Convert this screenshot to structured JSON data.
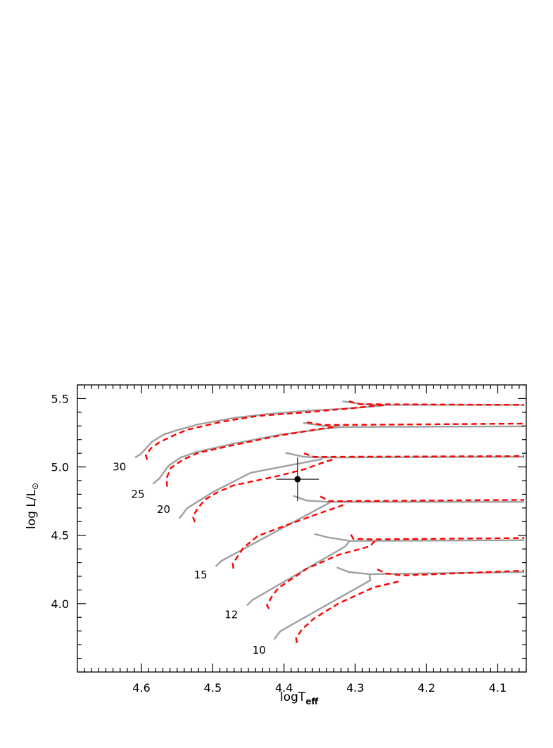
{
  "chart_data": {
    "type": "line",
    "xlabel": "logT",
    "xlabel_subscript": "eff",
    "ylabel": "log  L/L",
    "ylabel_subscript": "⊙",
    "xlim": [
      4.69,
      4.06
    ],
    "ylim": [
      3.5,
      5.6
    ],
    "x_reversed": true,
    "grid": false,
    "x_ticks": [
      "4.6",
      "4.5",
      "4.4",
      "4.3",
      "4.2",
      "4.1"
    ],
    "y_ticks": [
      "4.0",
      "4.5",
      "5.0",
      "5.5"
    ],
    "colors": {
      "solid": "#a0a0a0",
      "dashed": "#ff0000",
      "point": "#000000"
    },
    "series": [
      {
        "mass": "30",
        "style": "solid",
        "points": [
          [
            4.609,
            5.069
          ],
          [
            4.601,
            5.094
          ],
          [
            4.585,
            5.185
          ],
          [
            4.569,
            5.236
          ],
          [
            4.552,
            5.266
          ],
          [
            4.52,
            5.312
          ],
          [
            4.471,
            5.358
          ],
          [
            4.421,
            5.388
          ],
          [
            4.372,
            5.409
          ],
          [
            4.306,
            5.429
          ],
          [
            4.26,
            5.449
          ]
        ]
      },
      {
        "mass": "30",
        "style": "solid",
        "points": [
          [
            4.318,
            5.48
          ],
          [
            4.289,
            5.459
          ],
          [
            4.264,
            5.454
          ],
          [
            4.063,
            5.454
          ]
        ]
      },
      {
        "mass": "30",
        "style": "dashed",
        "points": [
          [
            4.592,
            5.053
          ],
          [
            4.594,
            5.084
          ],
          [
            4.587,
            5.135
          ],
          [
            4.575,
            5.18
          ],
          [
            4.559,
            5.221
          ],
          [
            4.536,
            5.272
          ],
          [
            4.486,
            5.332
          ],
          [
            4.437,
            5.373
          ],
          [
            4.372,
            5.398
          ],
          [
            4.306,
            5.429
          ],
          [
            4.26,
            5.454
          ]
        ]
      },
      {
        "mass": "30",
        "style": "dashed",
        "points": [
          [
            4.309,
            5.48
          ],
          [
            4.293,
            5.459
          ],
          [
            4.063,
            5.454
          ]
        ]
      },
      {
        "mass": "25",
        "style": "solid",
        "points": [
          [
            4.584,
            4.876
          ],
          [
            4.575,
            4.916
          ],
          [
            4.562,
            5.008
          ],
          [
            4.545,
            5.069
          ],
          [
            4.523,
            5.109
          ],
          [
            4.471,
            5.17
          ],
          [
            4.405,
            5.236
          ],
          [
            4.339,
            5.282
          ],
          [
            4.319,
            5.292
          ]
        ]
      },
      {
        "mass": "25",
        "style": "solid",
        "points": [
          [
            4.373,
            5.322
          ],
          [
            4.346,
            5.302
          ],
          [
            4.319,
            5.292
          ],
          [
            4.063,
            5.297
          ]
        ]
      },
      {
        "mass": "25",
        "style": "dashed",
        "points": [
          [
            4.564,
            4.855
          ],
          [
            4.565,
            4.916
          ],
          [
            4.559,
            4.992
          ],
          [
            4.542,
            5.053
          ],
          [
            4.52,
            5.104
          ],
          [
            4.471,
            5.16
          ],
          [
            4.405,
            5.231
          ],
          [
            4.339,
            5.287
          ],
          [
            4.326,
            5.292
          ]
        ]
      },
      {
        "mass": "25",
        "style": "dashed",
        "points": [
          [
            4.368,
            5.327
          ],
          [
            4.346,
            5.307
          ],
          [
            4.329,
            5.307
          ],
          [
            4.063,
            5.317
          ]
        ]
      },
      {
        "mass": "20",
        "style": "solid",
        "points": [
          [
            4.547,
            4.622
          ],
          [
            4.536,
            4.698
          ],
          [
            4.5,
            4.815
          ],
          [
            4.447,
            4.957
          ],
          [
            4.346,
            5.058
          ]
        ]
      },
      {
        "mass": "20",
        "style": "solid",
        "points": [
          [
            4.398,
            5.104
          ],
          [
            4.372,
            5.074
          ],
          [
            4.346,
            5.069
          ],
          [
            4.063,
            5.074
          ]
        ]
      },
      {
        "mass": "20",
        "style": "dashed",
        "points": [
          [
            4.525,
            4.596
          ],
          [
            4.528,
            4.637
          ],
          [
            4.521,
            4.698
          ],
          [
            4.51,
            4.764
          ],
          [
            4.493,
            4.815
          ],
          [
            4.471,
            4.865
          ],
          [
            4.411,
            4.931
          ],
          [
            4.372,
            4.982
          ],
          [
            4.339,
            5.043
          ],
          [
            4.329,
            5.058
          ]
        ]
      },
      {
        "mass": "20",
        "style": "dashed",
        "points": [
          [
            4.372,
            5.099
          ],
          [
            4.358,
            5.074
          ],
          [
            4.063,
            5.079
          ]
        ]
      },
      {
        "mass": "15",
        "style": "solid",
        "points": [
          [
            4.496,
            4.272
          ],
          [
            4.488,
            4.312
          ],
          [
            4.336,
            4.739
          ]
        ]
      },
      {
        "mass": "15",
        "style": "solid",
        "points": [
          [
            4.387,
            4.789
          ],
          [
            4.368,
            4.754
          ],
          [
            4.336,
            4.744
          ],
          [
            4.063,
            4.744
          ]
        ]
      },
      {
        "mass": "15",
        "style": "dashed",
        "points": [
          [
            4.471,
            4.256
          ],
          [
            4.472,
            4.291
          ],
          [
            4.457,
            4.409
          ],
          [
            4.437,
            4.495
          ],
          [
            4.398,
            4.571
          ],
          [
            4.355,
            4.652
          ],
          [
            4.316,
            4.723
          ],
          [
            4.314,
            4.749
          ]
        ]
      },
      {
        "mass": "15",
        "style": "dashed",
        "points": [
          [
            4.349,
            4.784
          ],
          [
            4.336,
            4.749
          ],
          [
            4.063,
            4.759
          ]
        ]
      },
      {
        "mass": "12",
        "style": "solid",
        "points": [
          [
            4.452,
            3.987
          ],
          [
            4.444,
            4.028
          ],
          [
            4.314,
            4.419
          ],
          [
            4.308,
            4.459
          ]
        ]
      },
      {
        "mass": "12",
        "style": "solid",
        "points": [
          [
            4.357,
            4.51
          ],
          [
            4.339,
            4.485
          ],
          [
            4.308,
            4.459
          ],
          [
            4.063,
            4.464
          ]
        ]
      },
      {
        "mass": "12",
        "style": "dashed",
        "points": [
          [
            4.421,
            3.962
          ],
          [
            4.424,
            3.987
          ],
          [
            4.417,
            4.053
          ],
          [
            4.408,
            4.114
          ],
          [
            4.368,
            4.256
          ],
          [
            4.323,
            4.358
          ],
          [
            4.28,
            4.419
          ],
          [
            4.272,
            4.459
          ]
        ]
      },
      {
        "mass": "12",
        "style": "dashed",
        "points": [
          [
            4.306,
            4.505
          ],
          [
            4.303,
            4.475
          ],
          [
            4.274,
            4.47
          ],
          [
            4.063,
            4.48
          ]
        ]
      },
      {
        "mass": "10",
        "style": "solid",
        "points": [
          [
            4.414,
            3.739
          ],
          [
            4.405,
            3.799
          ],
          [
            4.279,
            4.17
          ],
          [
            4.28,
            4.216
          ]
        ]
      },
      {
        "mass": "10",
        "style": "solid",
        "points": [
          [
            4.326,
            4.266
          ],
          [
            4.309,
            4.231
          ],
          [
            4.28,
            4.216
          ],
          [
            4.063,
            4.231
          ]
        ]
      },
      {
        "mass": "10",
        "style": "dashed",
        "points": [
          [
            4.382,
            3.713
          ],
          [
            4.383,
            3.749
          ],
          [
            4.375,
            3.81
          ],
          [
            4.358,
            3.891
          ],
          [
            4.323,
            4.003
          ],
          [
            4.274,
            4.119
          ],
          [
            4.237,
            4.165
          ]
        ]
      },
      {
        "mass": "10",
        "style": "dashed",
        "points": [
          [
            4.269,
            4.251
          ],
          [
            4.257,
            4.221
          ],
          [
            4.234,
            4.206
          ],
          [
            4.063,
            4.241
          ]
        ]
      }
    ],
    "annotations": [
      {
        "text": "30",
        "x": 4.631,
        "y": 5.0
      },
      {
        "text": "25",
        "x": 4.605,
        "y": 4.8
      },
      {
        "text": "20",
        "x": 4.569,
        "y": 4.69
      },
      {
        "text": "15",
        "x": 4.517,
        "y": 4.21
      },
      {
        "text": "12",
        "x": 4.474,
        "y": 3.92
      },
      {
        "text": "10",
        "x": 4.435,
        "y": 3.66
      }
    ],
    "data_point": {
      "x": 4.381,
      "y": 4.91,
      "x_err": 0.03,
      "y_err": 0.16
    }
  }
}
